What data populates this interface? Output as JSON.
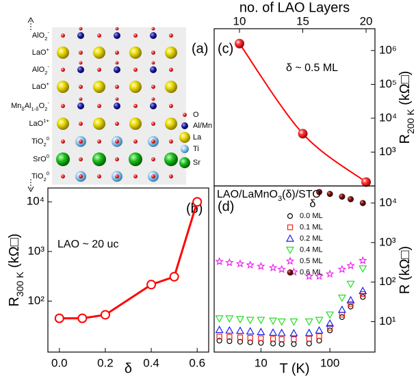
{
  "structure": {
    "panel_label": "(a)",
    "layers": [
      [
        {
          "t": "AlO"
        },
        {
          "sub": "2"
        },
        {
          "sup": "-"
        }
      ],
      [
        {
          "t": "LaO"
        },
        {
          "sup": "+"
        }
      ],
      [
        {
          "t": "AlO"
        },
        {
          "sub": "2"
        },
        {
          "sup": "-"
        }
      ],
      [
        {
          "t": "LaO"
        },
        {
          "sup": "+"
        }
      ],
      [
        {
          "t": "Mn"
        },
        {
          "sub": "δ"
        },
        {
          "t": "Al"
        },
        {
          "sub": "1-δ"
        },
        {
          "t": "O"
        },
        {
          "sub": "2"
        },
        {
          "sup": "-"
        }
      ],
      [
        {
          "t": "LaO"
        },
        {
          "sup": "1+"
        }
      ],
      [
        {
          "t": "TiO"
        },
        {
          "sub": "2"
        },
        {
          "sup": "0"
        }
      ],
      [
        {
          "t": "SrO"
        },
        {
          "sup": "0"
        }
      ],
      [
        {
          "t": "TiO"
        },
        {
          "sub": "2"
        },
        {
          "sup": "0"
        }
      ]
    ],
    "legend": [
      "O",
      "Al/Mn",
      "La",
      "Ti",
      "Sr"
    ]
  },
  "chart_data": [
    {
      "type": "line",
      "panel_label": "(b)",
      "annotation": "LAO ~ 20 uc",
      "x_label": "δ",
      "y_label": [
        {
          "t": "R"
        },
        {
          "sub": "300 K"
        },
        {
          "t": " (kΩ□)"
        }
      ],
      "x": [
        0,
        0.1,
        0.2,
        0.4,
        0.5,
        0.6
      ],
      "values": [
        45,
        45,
        53,
        215,
        310,
        10000
      ],
      "color": "#ff0000",
      "xlim": [
        -0.05,
        0.65
      ],
      "xticks": [
        {
          "value": 0,
          "label": "0.0"
        },
        0.2,
        0.4,
        0.6
      ],
      "yscale": "log",
      "ylim": [
        9.4,
        19000
      ],
      "yticks": [
        {
          "value": 100,
          "label": "10²"
        },
        {
          "value": 1000,
          "label": "10³"
        },
        {
          "value": 10000,
          "label": "10⁴"
        }
      ]
    },
    {
      "type": "scatter",
      "panel_label": "(c)",
      "annotation": "δ ~ 0.5 ML",
      "x_label": "no. of LAO Layers",
      "x_axis": "top",
      "y_axis": "right",
      "y_label": [
        {
          "t": "R"
        },
        {
          "sub": "200 K"
        },
        {
          "t": " (kΩ□)"
        }
      ],
      "x": [
        10,
        15,
        20
      ],
      "values": [
        1600000,
        3500,
        130
      ],
      "color": "#ff0000",
      "fit_line": true,
      "xlim": [
        8,
        20.7
      ],
      "xticks": [
        10,
        15,
        20
      ],
      "yscale": "log",
      "ylim": [
        100,
        4400000
      ],
      "yticks": [
        {
          "value": 1000,
          "label": "10³"
        },
        {
          "value": 10000,
          "label": "10⁴"
        },
        {
          "value": 100000,
          "label": "10⁵"
        },
        {
          "value": 1000000,
          "label": "10⁶"
        }
      ]
    },
    {
      "type": "scatter",
      "panel_label": "(d)",
      "legend_title": [
        {
          "t": "LAO/LaMnO"
        },
        {
          "sub": "3"
        },
        {
          "t": "(δ)/STO"
        }
      ],
      "legend_subtitle": "δ",
      "x_label": "T (K)",
      "y_axis": "right",
      "y_label": [
        {
          "t": "R (kΩ□)"
        }
      ],
      "xscale": "log",
      "yscale": "log",
      "x": [
        2.5,
        3.5,
        5,
        7,
        10,
        15,
        20,
        30,
        50,
        70,
        100,
        150,
        200,
        300
      ],
      "series": [
        {
          "name": "0.0 ML",
          "color": "#000000",
          "marker": "circle",
          "values": [
            3.3,
            3.2,
            3.1,
            3.0,
            2.9,
            2.8,
            2.7,
            2.7,
            2.8,
            3.3,
            6,
            13,
            24,
            42
          ]
        },
        {
          "name": "0.1 ML",
          "color": "#ee2211",
          "marker": "square",
          "values": [
            4.2,
            4.1,
            4,
            3.9,
            3.8,
            3.7,
            3.6,
            3.6,
            3.7,
            4.3,
            7,
            15,
            28,
            50
          ]
        },
        {
          "name": "0.2 ML",
          "color": "#1a1aee",
          "marker": "triangle",
          "values": [
            6.2,
            6,
            5.9,
            5.7,
            5.5,
            5.3,
            5.2,
            5.1,
            5.2,
            6,
            9,
            20,
            35,
            60
          ]
        },
        {
          "name": "0.4 ML",
          "color": "#22dd22",
          "marker": "triangle-down",
          "values": [
            12,
            12,
            11.5,
            11,
            11,
            10.5,
            10,
            10,
            10,
            11,
            15,
            40,
            90,
            220
          ]
        },
        {
          "name": "0.5 ML",
          "color": "#ee22ee",
          "marker": "star",
          "values": [
            330,
            310,
            290,
            270,
            250,
            230,
            210,
            180,
            140,
            140,
            160,
            210,
            260,
            350
          ]
        },
        {
          "name": "0.6 ML",
          "color": "#6b1010",
          "marker": "ball",
          "values": [
            null,
            null,
            null,
            null,
            null,
            null,
            null,
            null,
            null,
            19000,
            17000,
            14500,
            12500,
            10000
          ]
        }
      ],
      "xlim": [
        2.1,
        450
      ],
      "xticks": [
        10,
        100
      ],
      "ylim": [
        1.7,
        27000
      ],
      "yticks": [
        {
          "value": 10,
          "label": "10¹"
        },
        {
          "value": 100,
          "label": "10²"
        },
        {
          "value": 1000,
          "label": "10³"
        },
        {
          "value": 10000,
          "label": "10⁴"
        }
      ]
    }
  ]
}
